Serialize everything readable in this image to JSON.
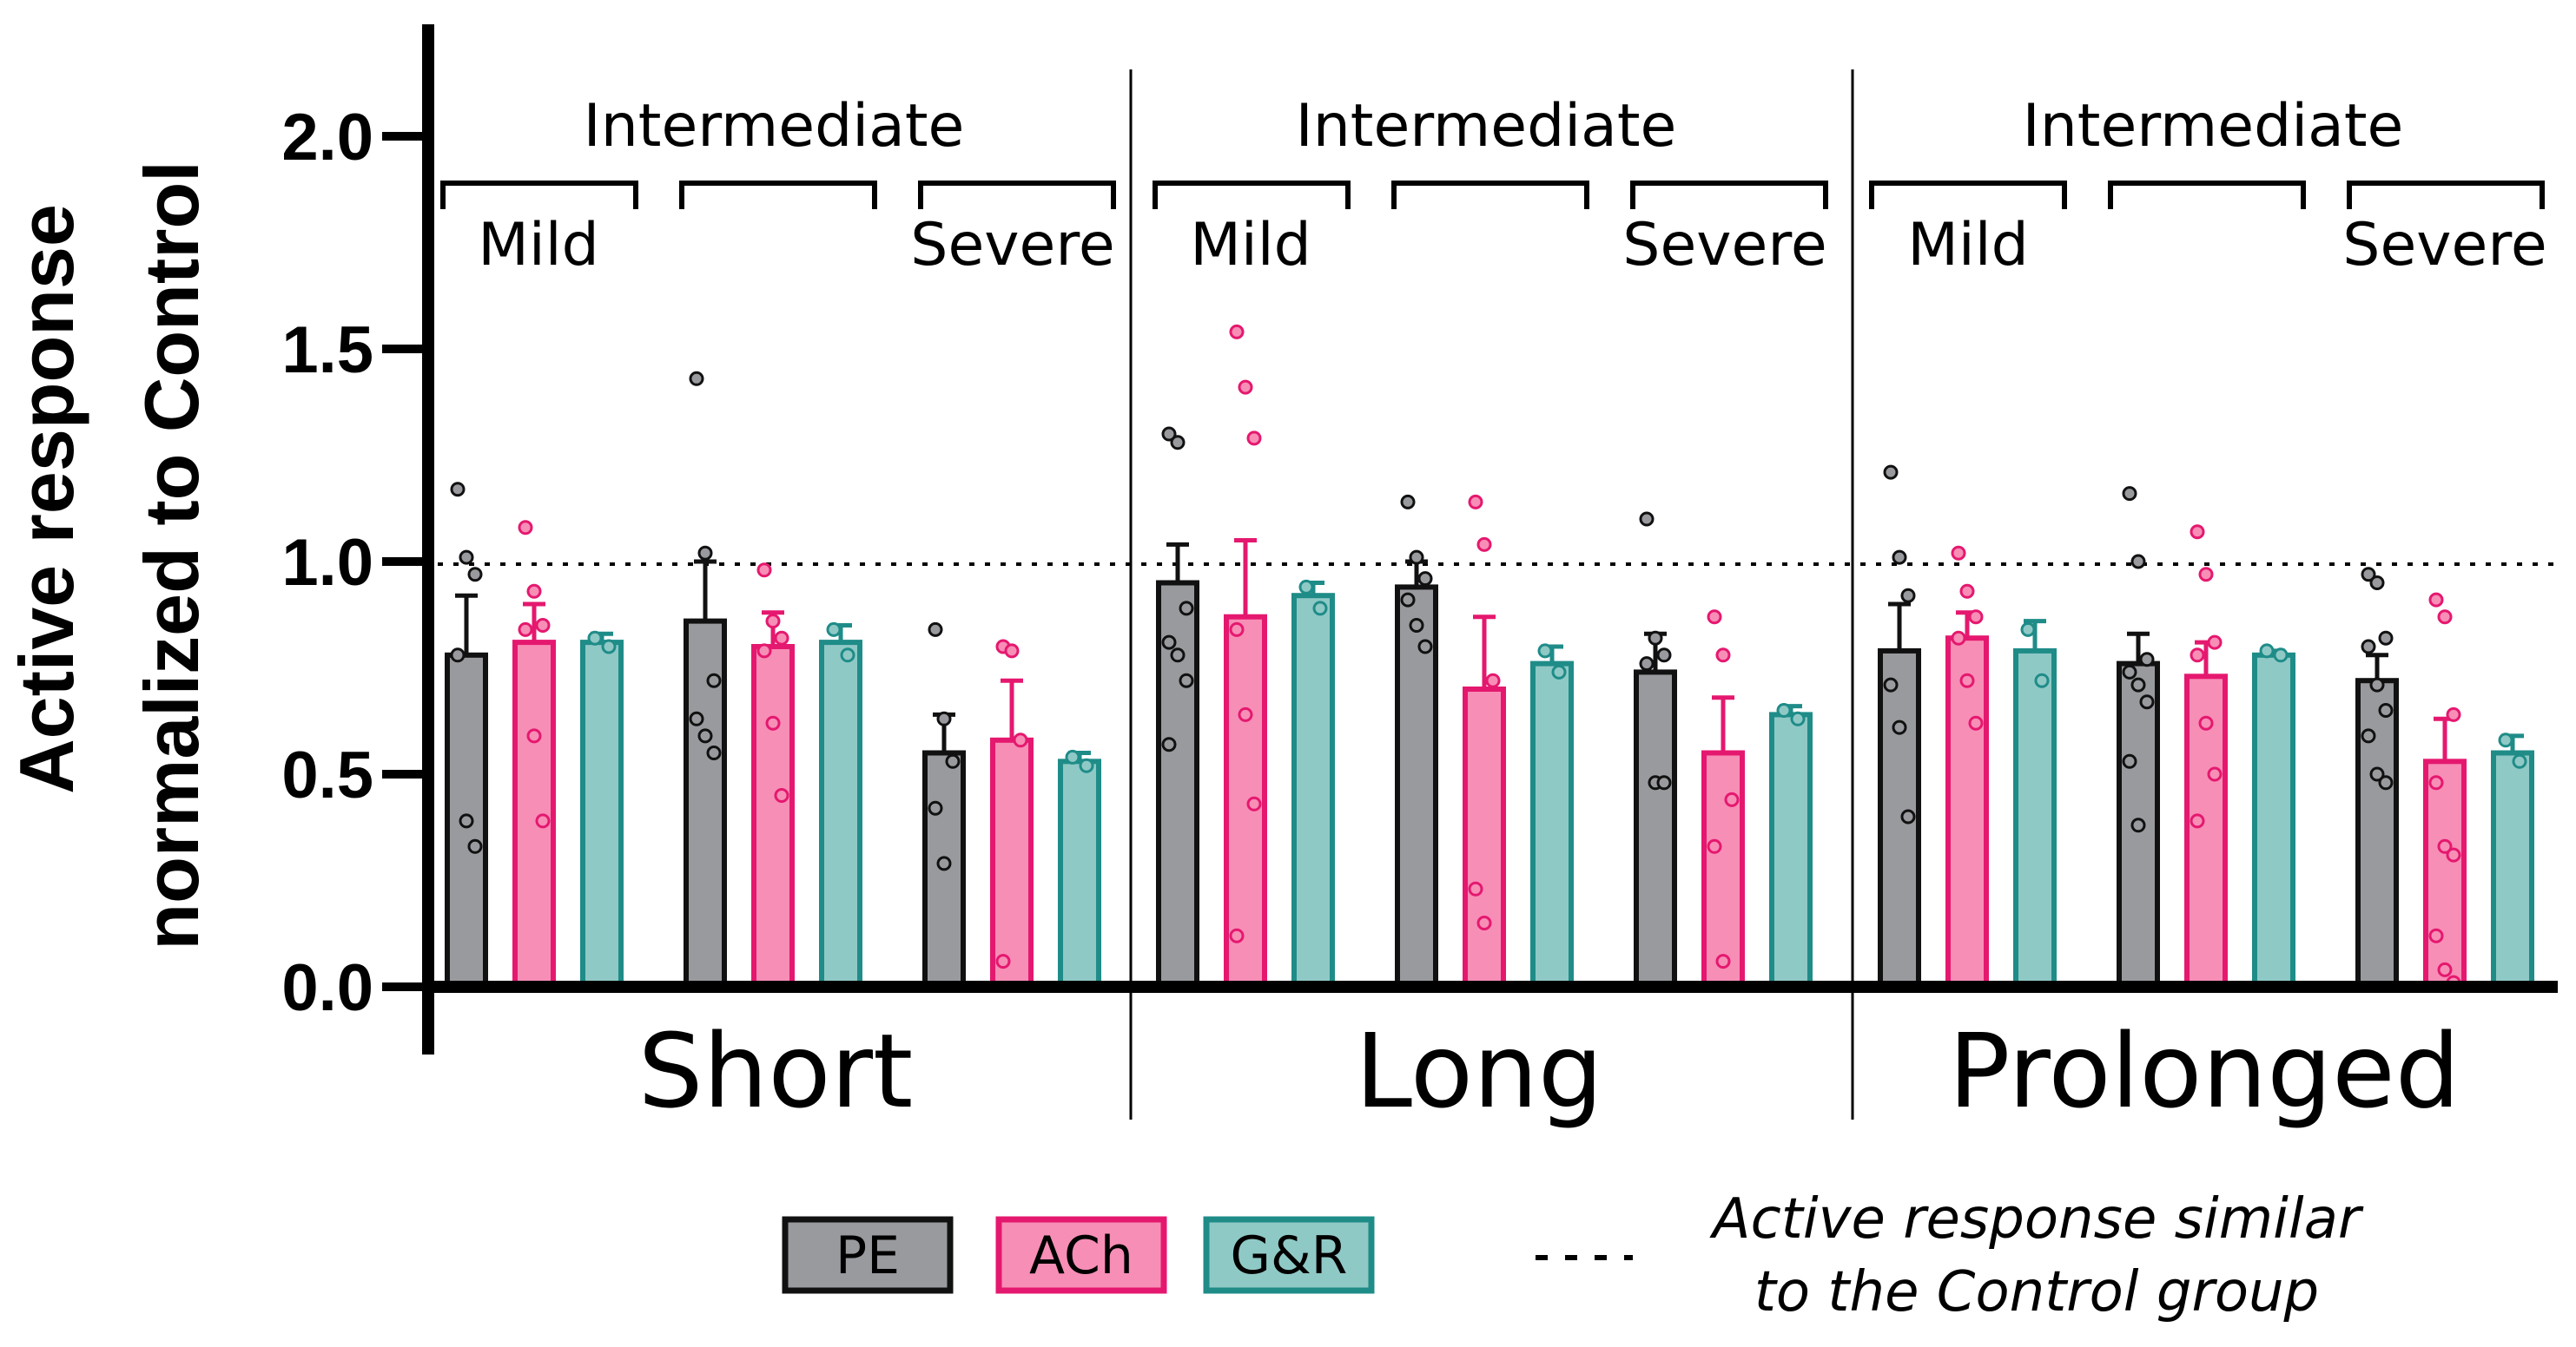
{
  "chart_data": {
    "type": "bar",
    "ylabel_line1": "Active response",
    "ylabel_line2": "normalized to Control",
    "ylim": [
      0,
      2.25
    ],
    "yticks": [
      "0.0",
      "0.5",
      "1.0",
      "1.5",
      "2.0"
    ],
    "reference_line": {
      "y": 1.0,
      "style": "dotted"
    },
    "legend": {
      "placement": "bottom",
      "items": [
        {
          "label": "PE",
          "fill": "#999a9e",
          "stroke": "#111111"
        },
        {
          "label": "ACh",
          "fill": "#f78eb6",
          "stroke": "#e5186f"
        },
        {
          "label": "G&R",
          "fill": "#8fc9c6",
          "stroke": "#1f8c88"
        }
      ],
      "reference_note_line1": "Active response similar",
      "reference_note_line2": "to the Control group"
    },
    "panels": [
      {
        "label": "Short",
        "bracket_labels": {
          "left": "Mild",
          "top": "Intermediate",
          "right": "Severe"
        },
        "groups": [
          {
            "severity": "Mild",
            "series": [
              {
                "name": "PE",
                "mean": 0.78,
                "sem": 0.14,
                "points": [
                  1.17,
                  1.01,
                  0.97,
                  0.78,
                  0.39,
                  0.33
                ]
              },
              {
                "name": "ACh",
                "mean": 0.81,
                "sem": 0.09,
                "points": [
                  1.08,
                  0.93,
                  0.85,
                  0.84,
                  0.59,
                  0.39
                ]
              },
              {
                "name": "G&R",
                "mean": 0.81,
                "sem": 0.02,
                "points": [
                  0.82,
                  0.8
                ]
              }
            ]
          },
          {
            "severity": "Intermediate",
            "series": [
              {
                "name": "PE",
                "mean": 0.86,
                "sem": 0.14,
                "points": [
                  1.43,
                  1.02,
                  0.72,
                  0.63,
                  0.59,
                  0.55
                ]
              },
              {
                "name": "ACh",
                "mean": 0.8,
                "sem": 0.08,
                "points": [
                  0.98,
                  0.86,
                  0.82,
                  0.79,
                  0.62,
                  0.45
                ]
              },
              {
                "name": "G&R",
                "mean": 0.81,
                "sem": 0.04,
                "points": [
                  0.84,
                  0.78
                ]
              }
            ]
          },
          {
            "severity": "Severe",
            "series": [
              {
                "name": "PE",
                "mean": 0.55,
                "sem": 0.09,
                "points": [
                  0.84,
                  0.63,
                  0.53,
                  0.42,
                  0.29
                ]
              },
              {
                "name": "ACh",
                "mean": 0.58,
                "sem": 0.14,
                "points": [
                  0.8,
                  0.79,
                  0.58,
                  0.06
                ]
              },
              {
                "name": "G&R",
                "mean": 0.53,
                "sem": 0.02,
                "points": [
                  0.54,
                  0.52
                ]
              }
            ]
          }
        ]
      },
      {
        "label": "Long",
        "bracket_labels": {
          "left": "Mild",
          "top": "Intermediate",
          "right": "Severe"
        },
        "groups": [
          {
            "severity": "Mild",
            "series": [
              {
                "name": "PE",
                "mean": 0.95,
                "sem": 0.09,
                "points": [
                  1.3,
                  1.28,
                  0.89,
                  0.81,
                  0.78,
                  0.72,
                  0.57
                ]
              },
              {
                "name": "ACh",
                "mean": 0.87,
                "sem": 0.18,
                "points": [
                  1.54,
                  1.41,
                  1.29,
                  0.84,
                  0.64,
                  0.43,
                  0.12
                ]
              },
              {
                "name": "G&R",
                "mean": 0.92,
                "sem": 0.03,
                "points": [
                  0.94,
                  0.89
                ]
              }
            ]
          },
          {
            "severity": "Intermediate",
            "series": [
              {
                "name": "PE",
                "mean": 0.94,
                "sem": 0.06,
                "points": [
                  1.14,
                  1.01,
                  0.96,
                  0.91,
                  0.85,
                  0.8
                ]
              },
              {
                "name": "ACh",
                "mean": 0.7,
                "sem": 0.17,
                "points": [
                  1.14,
                  1.04,
                  0.72,
                  0.23,
                  0.15
                ]
              },
              {
                "name": "G&R",
                "mean": 0.76,
                "sem": 0.04,
                "points": [
                  0.79,
                  0.74
                ]
              }
            ]
          },
          {
            "severity": "Severe",
            "series": [
              {
                "name": "PE",
                "mean": 0.74,
                "sem": 0.09,
                "points": [
                  1.1,
                  0.82,
                  0.78,
                  0.76,
                  0.48,
                  0.48
                ]
              },
              {
                "name": "ACh",
                "mean": 0.55,
                "sem": 0.13,
                "points": [
                  0.87,
                  0.78,
                  0.44,
                  0.33,
                  0.06
                ]
              },
              {
                "name": "G&R",
                "mean": 0.64,
                "sem": 0.02,
                "points": [
                  0.65,
                  0.63
                ]
              }
            ]
          }
        ]
      },
      {
        "label": "Prolonged",
        "bracket_labels": {
          "left": "Mild",
          "top": "Intermediate",
          "right": "Severe"
        },
        "groups": [
          {
            "severity": "Mild",
            "series": [
              {
                "name": "PE",
                "mean": 0.79,
                "sem": 0.11,
                "points": [
                  1.21,
                  1.01,
                  0.92,
                  0.71,
                  0.61,
                  0.4
                ]
              },
              {
                "name": "ACh",
                "mean": 0.82,
                "sem": 0.06,
                "points": [
                  1.02,
                  0.93,
                  0.87,
                  0.82,
                  0.72,
                  0.62
                ]
              },
              {
                "name": "G&R",
                "mean": 0.79,
                "sem": 0.07,
                "points": [
                  0.84,
                  0.72
                ]
              }
            ]
          },
          {
            "severity": "Intermediate",
            "series": [
              {
                "name": "PE",
                "mean": 0.76,
                "sem": 0.07,
                "points": [
                  1.16,
                  1.0,
                  0.77,
                  0.74,
                  0.71,
                  0.67,
                  0.53,
                  0.38
                ]
              },
              {
                "name": "ACh",
                "mean": 0.73,
                "sem": 0.08,
                "points": [
                  1.07,
                  0.97,
                  0.81,
                  0.78,
                  0.62,
                  0.5,
                  0.39
                ]
              },
              {
                "name": "G&R",
                "mean": 0.78,
                "sem": 0.01,
                "points": [
                  0.79,
                  0.78
                ]
              }
            ]
          },
          {
            "severity": "Severe",
            "series": [
              {
                "name": "PE",
                "mean": 0.72,
                "sem": 0.06,
                "points": [
                  0.97,
                  0.95,
                  0.82,
                  0.8,
                  0.71,
                  0.65,
                  0.59,
                  0.5,
                  0.48
                ]
              },
              {
                "name": "ACh",
                "mean": 0.53,
                "sem": 0.1,
                "points": [
                  0.91,
                  0.87,
                  0.64,
                  0.48,
                  0.33,
                  0.31,
                  0.12,
                  0.04,
                  0.01
                ]
              },
              {
                "name": "G&R",
                "mean": 0.55,
                "sem": 0.04,
                "points": [
                  0.58,
                  0.53
                ]
              }
            ]
          }
        ]
      }
    ]
  }
}
